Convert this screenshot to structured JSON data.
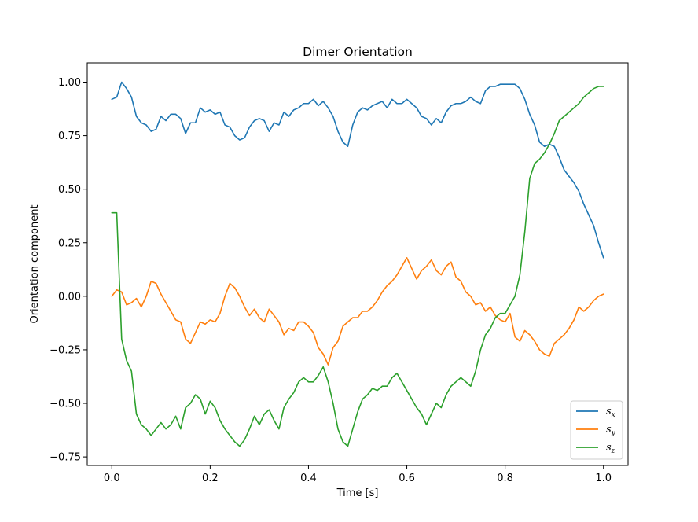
{
  "chart_data": {
    "type": "line",
    "title": "Dimer Orientation",
    "xlabel": "Time [s]",
    "ylabel": "Orientation component",
    "xlim": [
      -0.05,
      1.05
    ],
    "ylim": [
      -0.79,
      1.09
    ],
    "xticks": [
      0.0,
      0.2,
      0.4,
      0.6,
      0.8,
      1.0
    ],
    "xtick_labels": [
      "0.0",
      "0.2",
      "0.4",
      "0.6",
      "0.8",
      "1.0"
    ],
    "yticks": [
      -0.75,
      -0.5,
      -0.25,
      0.0,
      0.25,
      0.5,
      0.75,
      1.0
    ],
    "ytick_labels": [
      "−0.75",
      "−0.50",
      "−0.25",
      "0.00",
      "0.25",
      "0.50",
      "0.75",
      "1.00"
    ],
    "grid": false,
    "legend_position": "lower-right",
    "colors": {
      "sx": "#1f77b4",
      "sy": "#ff7f0e",
      "sz": "#2ca02c"
    },
    "series": [
      {
        "name": "s_x",
        "legend_base": "s",
        "legend_sub": "x",
        "color": "#1f77b4",
        "x": [
          0.0,
          0.01,
          0.02,
          0.03,
          0.04,
          0.05,
          0.06,
          0.07,
          0.08,
          0.09,
          0.1,
          0.11,
          0.12,
          0.13,
          0.14,
          0.15,
          0.16,
          0.17,
          0.18,
          0.19,
          0.2,
          0.21,
          0.22,
          0.23,
          0.24,
          0.25,
          0.26,
          0.27,
          0.28,
          0.29,
          0.3,
          0.31,
          0.32,
          0.33,
          0.34,
          0.35,
          0.36,
          0.37,
          0.38,
          0.39,
          0.4,
          0.41,
          0.42,
          0.43,
          0.44,
          0.45,
          0.46,
          0.47,
          0.48,
          0.49,
          0.5,
          0.51,
          0.52,
          0.53,
          0.54,
          0.55,
          0.56,
          0.57,
          0.58,
          0.59,
          0.6,
          0.61,
          0.62,
          0.63,
          0.64,
          0.65,
          0.66,
          0.67,
          0.68,
          0.69,
          0.7,
          0.71,
          0.72,
          0.73,
          0.74,
          0.75,
          0.76,
          0.77,
          0.78,
          0.79,
          0.8,
          0.81,
          0.82,
          0.83,
          0.84,
          0.85,
          0.86,
          0.87,
          0.88,
          0.89,
          0.9,
          0.91,
          0.92,
          0.93,
          0.94,
          0.95,
          0.96,
          0.97,
          0.98,
          0.99,
          1.0
        ],
        "y": [
          0.92,
          0.93,
          1.0,
          0.97,
          0.93,
          0.84,
          0.81,
          0.8,
          0.77,
          0.78,
          0.84,
          0.82,
          0.85,
          0.85,
          0.83,
          0.76,
          0.81,
          0.81,
          0.88,
          0.86,
          0.87,
          0.85,
          0.86,
          0.8,
          0.79,
          0.75,
          0.73,
          0.74,
          0.79,
          0.82,
          0.83,
          0.82,
          0.77,
          0.81,
          0.8,
          0.86,
          0.84,
          0.87,
          0.88,
          0.9,
          0.9,
          0.92,
          0.89,
          0.91,
          0.88,
          0.84,
          0.77,
          0.72,
          0.7,
          0.8,
          0.86,
          0.88,
          0.87,
          0.89,
          0.9,
          0.91,
          0.88,
          0.92,
          0.9,
          0.9,
          0.92,
          0.9,
          0.88,
          0.84,
          0.83,
          0.8,
          0.83,
          0.81,
          0.86,
          0.89,
          0.9,
          0.9,
          0.91,
          0.93,
          0.91,
          0.9,
          0.96,
          0.98,
          0.98,
          0.99,
          0.99,
          0.99,
          0.99,
          0.97,
          0.92,
          0.85,
          0.8,
          0.72,
          0.7,
          0.71,
          0.7,
          0.65,
          0.59,
          0.56,
          0.53,
          0.49,
          0.43,
          0.38,
          0.33,
          0.25,
          0.18
        ]
      },
      {
        "name": "s_y",
        "legend_base": "s",
        "legend_sub": "y",
        "color": "#ff7f0e",
        "x": [
          0.0,
          0.01,
          0.02,
          0.03,
          0.04,
          0.05,
          0.06,
          0.07,
          0.08,
          0.09,
          0.1,
          0.11,
          0.12,
          0.13,
          0.14,
          0.15,
          0.16,
          0.17,
          0.18,
          0.19,
          0.2,
          0.21,
          0.22,
          0.23,
          0.24,
          0.25,
          0.26,
          0.27,
          0.28,
          0.29,
          0.3,
          0.31,
          0.32,
          0.33,
          0.34,
          0.35,
          0.36,
          0.37,
          0.38,
          0.39,
          0.4,
          0.41,
          0.42,
          0.43,
          0.44,
          0.45,
          0.46,
          0.47,
          0.48,
          0.49,
          0.5,
          0.51,
          0.52,
          0.53,
          0.54,
          0.55,
          0.56,
          0.57,
          0.58,
          0.59,
          0.6,
          0.61,
          0.62,
          0.63,
          0.64,
          0.65,
          0.66,
          0.67,
          0.68,
          0.69,
          0.7,
          0.71,
          0.72,
          0.73,
          0.74,
          0.75,
          0.76,
          0.77,
          0.78,
          0.79,
          0.8,
          0.81,
          0.82,
          0.83,
          0.84,
          0.85,
          0.86,
          0.87,
          0.88,
          0.89,
          0.9,
          0.91,
          0.92,
          0.93,
          0.94,
          0.95,
          0.96,
          0.97,
          0.98,
          0.99,
          1.0
        ],
        "y": [
          0.0,
          0.03,
          0.02,
          -0.04,
          -0.03,
          -0.01,
          -0.05,
          0.0,
          0.07,
          0.06,
          0.01,
          -0.03,
          -0.07,
          -0.11,
          -0.12,
          -0.2,
          -0.22,
          -0.17,
          -0.12,
          -0.13,
          -0.11,
          -0.12,
          -0.08,
          0.0,
          0.06,
          0.04,
          0.0,
          -0.05,
          -0.09,
          -0.06,
          -0.1,
          -0.12,
          -0.06,
          -0.09,
          -0.12,
          -0.18,
          -0.15,
          -0.16,
          -0.12,
          -0.12,
          -0.14,
          -0.17,
          -0.24,
          -0.27,
          -0.32,
          -0.24,
          -0.21,
          -0.14,
          -0.12,
          -0.1,
          -0.1,
          -0.07,
          -0.07,
          -0.05,
          -0.02,
          0.02,
          0.05,
          0.07,
          0.1,
          0.14,
          0.18,
          0.13,
          0.08,
          0.12,
          0.14,
          0.17,
          0.12,
          0.1,
          0.14,
          0.16,
          0.09,
          0.07,
          0.02,
          0.0,
          -0.04,
          -0.03,
          -0.07,
          -0.05,
          -0.09,
          -0.11,
          -0.12,
          -0.08,
          -0.19,
          -0.21,
          -0.16,
          -0.18,
          -0.21,
          -0.25,
          -0.27,
          -0.28,
          -0.22,
          -0.2,
          -0.18,
          -0.15,
          -0.11,
          -0.05,
          -0.07,
          -0.05,
          -0.02,
          0.0,
          0.01
        ]
      },
      {
        "name": "s_z",
        "legend_base": "s",
        "legend_sub": "z",
        "color": "#2ca02c",
        "x": [
          0.0,
          0.01,
          0.02,
          0.03,
          0.04,
          0.05,
          0.06,
          0.07,
          0.08,
          0.09,
          0.1,
          0.11,
          0.12,
          0.13,
          0.14,
          0.15,
          0.16,
          0.17,
          0.18,
          0.19,
          0.2,
          0.21,
          0.22,
          0.23,
          0.24,
          0.25,
          0.26,
          0.27,
          0.28,
          0.29,
          0.3,
          0.31,
          0.32,
          0.33,
          0.34,
          0.35,
          0.36,
          0.37,
          0.38,
          0.39,
          0.4,
          0.41,
          0.42,
          0.43,
          0.44,
          0.45,
          0.46,
          0.47,
          0.48,
          0.49,
          0.5,
          0.51,
          0.52,
          0.53,
          0.54,
          0.55,
          0.56,
          0.57,
          0.58,
          0.59,
          0.6,
          0.61,
          0.62,
          0.63,
          0.64,
          0.65,
          0.66,
          0.67,
          0.68,
          0.69,
          0.7,
          0.71,
          0.72,
          0.73,
          0.74,
          0.75,
          0.76,
          0.77,
          0.78,
          0.79,
          0.8,
          0.81,
          0.82,
          0.83,
          0.84,
          0.85,
          0.86,
          0.87,
          0.88,
          0.89,
          0.9,
          0.91,
          0.92,
          0.93,
          0.94,
          0.95,
          0.96,
          0.97,
          0.98,
          0.99,
          1.0
        ],
        "y": [
          0.39,
          0.39,
          -0.2,
          -0.3,
          -0.35,
          -0.55,
          -0.6,
          -0.62,
          -0.65,
          -0.62,
          -0.59,
          -0.62,
          -0.6,
          -0.56,
          -0.62,
          -0.52,
          -0.5,
          -0.46,
          -0.48,
          -0.55,
          -0.49,
          -0.52,
          -0.58,
          -0.62,
          -0.65,
          -0.68,
          -0.7,
          -0.67,
          -0.62,
          -0.56,
          -0.6,
          -0.55,
          -0.53,
          -0.58,
          -0.62,
          -0.52,
          -0.48,
          -0.45,
          -0.4,
          -0.38,
          -0.4,
          -0.4,
          -0.37,
          -0.33,
          -0.4,
          -0.5,
          -0.62,
          -0.68,
          -0.7,
          -0.62,
          -0.54,
          -0.48,
          -0.46,
          -0.43,
          -0.44,
          -0.42,
          -0.42,
          -0.38,
          -0.36,
          -0.4,
          -0.44,
          -0.48,
          -0.52,
          -0.55,
          -0.6,
          -0.55,
          -0.5,
          -0.52,
          -0.46,
          -0.42,
          -0.4,
          -0.38,
          -0.4,
          -0.42,
          -0.35,
          -0.25,
          -0.18,
          -0.15,
          -0.1,
          -0.08,
          -0.08,
          -0.04,
          0.0,
          0.1,
          0.3,
          0.55,
          0.62,
          0.64,
          0.67,
          0.71,
          0.76,
          0.82,
          0.84,
          0.86,
          0.88,
          0.9,
          0.93,
          0.95,
          0.97,
          0.98,
          0.98
        ]
      }
    ]
  }
}
